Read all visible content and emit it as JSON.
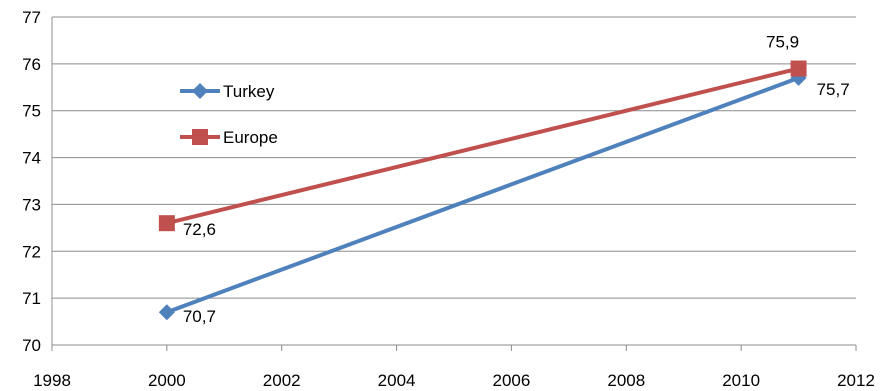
{
  "chart_data": {
    "type": "line",
    "xlim": [
      1998,
      2012
    ],
    "ylim": [
      70,
      77
    ],
    "x_ticks": [
      1998,
      2000,
      2002,
      2004,
      2006,
      2008,
      2010,
      2012
    ],
    "y_ticks": [
      70,
      71,
      72,
      73,
      74,
      75,
      76,
      77
    ],
    "grid": {
      "horizontal": true,
      "vertical": false
    },
    "legend_position": "upper-left inside plot",
    "series": [
      {
        "name": "Turkey",
        "color": "#4F81BD",
        "marker": "diamond",
        "points": [
          {
            "x": 2000,
            "y": 70.7,
            "label": "70,7"
          },
          {
            "x": 2011,
            "y": 75.7,
            "label": "75,7"
          }
        ]
      },
      {
        "name": "Europe",
        "color": "#C0504D",
        "marker": "square",
        "points": [
          {
            "x": 2000,
            "y": 72.6,
            "label": "72,6"
          },
          {
            "x": 2011,
            "y": 75.9,
            "label": "75,9"
          }
        ]
      }
    ]
  }
}
